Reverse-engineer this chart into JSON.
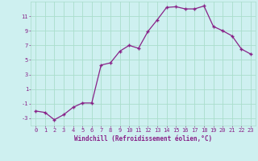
{
  "x": [
    0,
    1,
    2,
    3,
    4,
    5,
    6,
    7,
    8,
    9,
    10,
    11,
    12,
    13,
    14,
    15,
    16,
    17,
    18,
    19,
    20,
    21,
    22,
    23
  ],
  "y": [
    -2.0,
    -2.2,
    -3.2,
    -2.5,
    -1.5,
    -0.9,
    -0.9,
    4.3,
    4.6,
    6.2,
    7.0,
    6.6,
    8.9,
    10.5,
    12.2,
    12.3,
    12.0,
    12.0,
    12.4,
    9.6,
    9.0,
    8.3,
    6.5,
    5.8
  ],
  "line_color": "#882288",
  "marker": "+",
  "markersize": 3,
  "markeredgewidth": 1.0,
  "linewidth": 0.9,
  "xlabel": "Windchill (Refroidissement éolien,°C)",
  "xlabel_fontsize": 5.5,
  "yticks": [
    -3,
    -1,
    1,
    3,
    5,
    7,
    9,
    11
  ],
  "xticks": [
    0,
    1,
    2,
    3,
    4,
    5,
    6,
    7,
    8,
    9,
    10,
    11,
    12,
    13,
    14,
    15,
    16,
    17,
    18,
    19,
    20,
    21,
    22,
    23
  ],
  "ylim": [
    -4,
    13
  ],
  "xlim": [
    -0.5,
    23.5
  ],
  "bg_color": "#cef0f0",
  "grid_color": "#aaddcc",
  "tick_fontsize": 5.0,
  "tick_color": "#882288",
  "font_family": "monospace"
}
